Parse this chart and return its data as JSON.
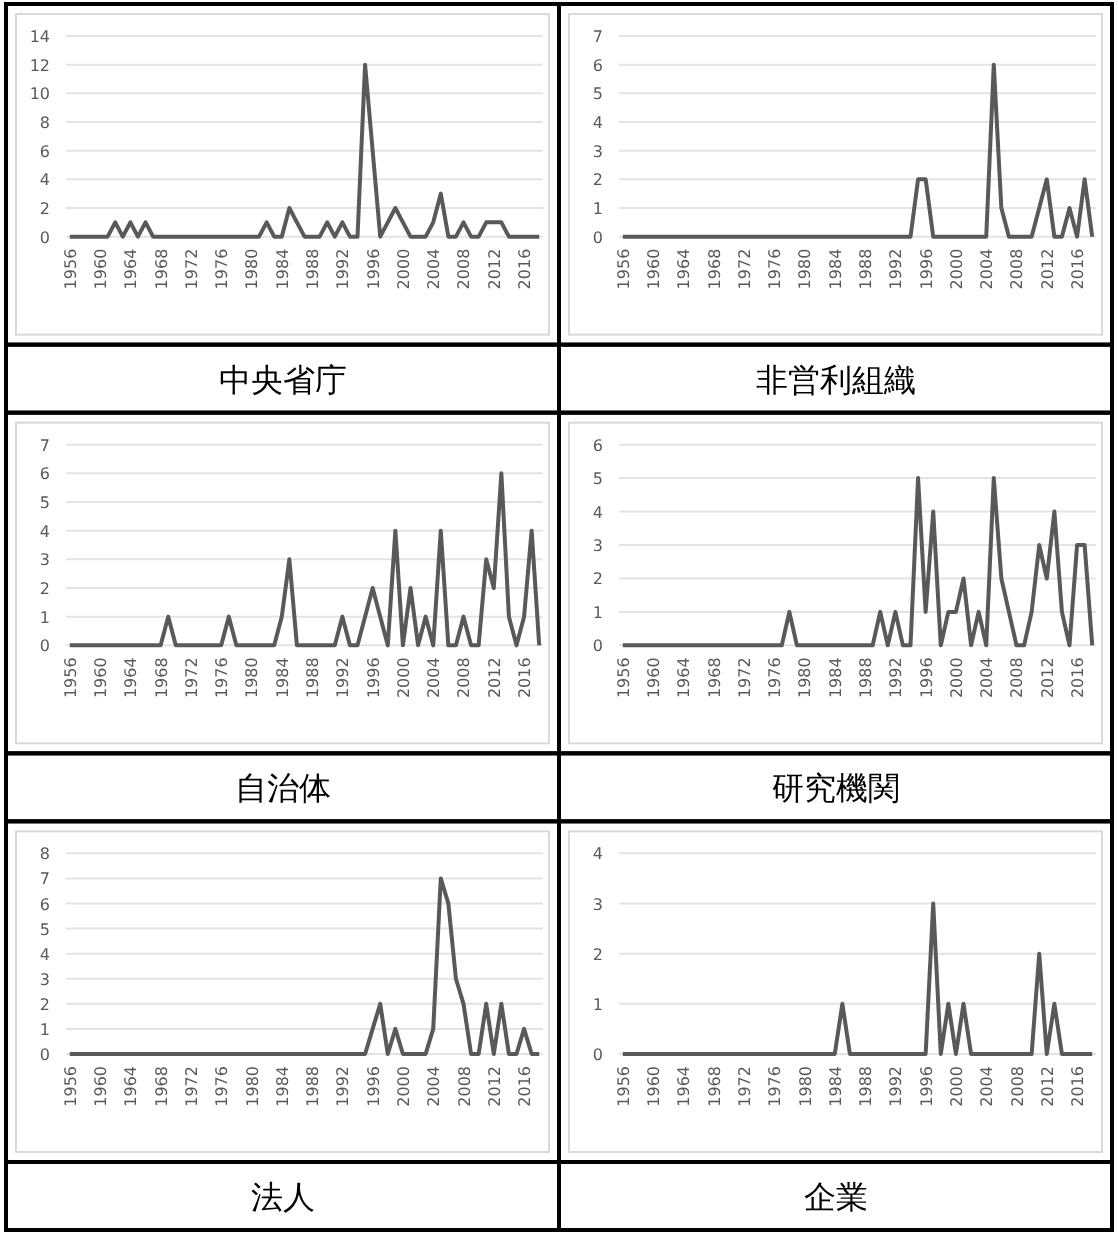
{
  "chart_data": [
    {
      "type": "line",
      "title": "中央省庁",
      "color": "#595959",
      "grid": "y",
      "ylim": [
        0,
        14
      ],
      "yticks": [
        0,
        2,
        4,
        6,
        8,
        10,
        12,
        14
      ],
      "categories": [
        "1956",
        null,
        null,
        null,
        "1960",
        null,
        null,
        null,
        "1964",
        null,
        null,
        null,
        "1968",
        null,
        null,
        null,
        "1972",
        null,
        null,
        null,
        "1976",
        null,
        null,
        null,
        "1980",
        null,
        null,
        null,
        "1984",
        null,
        null,
        null,
        "1988",
        null,
        null,
        null,
        "1992",
        null,
        null,
        null,
        "1996",
        null,
        null,
        null,
        "2000",
        null,
        null,
        null,
        "2004",
        null,
        null,
        null,
        "2008",
        null,
        null,
        null,
        "2012",
        null,
        null,
        null,
        "2016",
        null,
        null
      ],
      "values": [
        0,
        0,
        0,
        0,
        0,
        0,
        1,
        0,
        1,
        0,
        1,
        0,
        0,
        0,
        0,
        0,
        0,
        0,
        0,
        0,
        0,
        0,
        0,
        0,
        0,
        0,
        1,
        0,
        0,
        2,
        1,
        0,
        0,
        0,
        1,
        0,
        1,
        0,
        0,
        12,
        6,
        0,
        1,
        2,
        1,
        0,
        0,
        0,
        1,
        3,
        0,
        0,
        1,
        0,
        0,
        1,
        1,
        1,
        0,
        0,
        0,
        0,
        0
      ]
    },
    {
      "type": "line",
      "title": "非営利組織",
      "color": "#595959",
      "grid": "y",
      "ylim": [
        0,
        7
      ],
      "yticks": [
        0,
        1,
        2,
        3,
        4,
        5,
        6,
        7
      ],
      "categories": [
        "1956",
        null,
        null,
        null,
        "1960",
        null,
        null,
        null,
        "1964",
        null,
        null,
        null,
        "1968",
        null,
        null,
        null,
        "1972",
        null,
        null,
        null,
        "1976",
        null,
        null,
        null,
        "1980",
        null,
        null,
        null,
        "1984",
        null,
        null,
        null,
        "1988",
        null,
        null,
        null,
        "1992",
        null,
        null,
        null,
        "1996",
        null,
        null,
        null,
        "2000",
        null,
        null,
        null,
        "2004",
        null,
        null,
        null,
        "2008",
        null,
        null,
        null,
        "2012",
        null,
        null,
        null,
        "2016",
        null,
        null
      ],
      "values": [
        0,
        0,
        0,
        0,
        0,
        0,
        0,
        0,
        0,
        0,
        0,
        0,
        0,
        0,
        0,
        0,
        0,
        0,
        0,
        0,
        0,
        0,
        0,
        0,
        0,
        0,
        0,
        0,
        0,
        0,
        0,
        0,
        0,
        0,
        0,
        0,
        0,
        0,
        0,
        2,
        2,
        0,
        0,
        0,
        0,
        0,
        0,
        0,
        0,
        6,
        1,
        0,
        0,
        0,
        0,
        1,
        2,
        0,
        0,
        1,
        0,
        2,
        0
      ]
    },
    {
      "type": "line",
      "title": "自治体",
      "color": "#595959",
      "grid": "y",
      "ylim": [
        0,
        7
      ],
      "yticks": [
        0,
        1,
        2,
        3,
        4,
        5,
        6,
        7
      ],
      "categories": [
        "1956",
        null,
        null,
        null,
        "1960",
        null,
        null,
        null,
        "1964",
        null,
        null,
        null,
        "1968",
        null,
        null,
        null,
        "1972",
        null,
        null,
        null,
        "1976",
        null,
        null,
        null,
        "1980",
        null,
        null,
        null,
        "1984",
        null,
        null,
        null,
        "1988",
        null,
        null,
        null,
        "1992",
        null,
        null,
        null,
        "1996",
        null,
        null,
        null,
        "2000",
        null,
        null,
        null,
        "2004",
        null,
        null,
        null,
        "2008",
        null,
        null,
        null,
        "2012",
        null,
        null,
        null,
        "2016",
        null,
        null
      ],
      "values": [
        0,
        0,
        0,
        0,
        0,
        0,
        0,
        0,
        0,
        0,
        0,
        0,
        0,
        1,
        0,
        0,
        0,
        0,
        0,
        0,
        0,
        1,
        0,
        0,
        0,
        0,
        0,
        0,
        1,
        3,
        0,
        0,
        0,
        0,
        0,
        0,
        1,
        0,
        0,
        1,
        2,
        1,
        0,
        4,
        0,
        2,
        0,
        1,
        0,
        4,
        0,
        0,
        1,
        0,
        0,
        3,
        2,
        6,
        1,
        0,
        1,
        4,
        0
      ]
    },
    {
      "type": "line",
      "title": "研究機関",
      "color": "#595959",
      "grid": "y",
      "ylim": [
        0,
        6
      ],
      "yticks": [
        0,
        1,
        2,
        3,
        4,
        5,
        6
      ],
      "categories": [
        "1956",
        null,
        null,
        null,
        "1960",
        null,
        null,
        null,
        "1964",
        null,
        null,
        null,
        "1968",
        null,
        null,
        null,
        "1972",
        null,
        null,
        null,
        "1976",
        null,
        null,
        null,
        "1980",
        null,
        null,
        null,
        "1984",
        null,
        null,
        null,
        "1988",
        null,
        null,
        null,
        "1992",
        null,
        null,
        null,
        "1996",
        null,
        null,
        null,
        "2000",
        null,
        null,
        null,
        "2004",
        null,
        null,
        null,
        "2008",
        null,
        null,
        null,
        "2012",
        null,
        null,
        null,
        "2016",
        null,
        null
      ],
      "values": [
        0,
        0,
        0,
        0,
        0,
        0,
        0,
        0,
        0,
        0,
        0,
        0,
        0,
        0,
        0,
        0,
        0,
        0,
        0,
        0,
        0,
        0,
        1,
        0,
        0,
        0,
        0,
        0,
        0,
        0,
        0,
        0,
        0,
        0,
        1,
        0,
        1,
        0,
        0,
        5,
        1,
        4,
        0,
        1,
        1,
        2,
        0,
        1,
        0,
        5,
        2,
        1,
        0,
        0,
        1,
        3,
        2,
        4,
        1,
        0,
        3,
        3,
        0
      ]
    },
    {
      "type": "line",
      "title": "法人",
      "color": "#595959",
      "grid": "y",
      "ylim": [
        0,
        8
      ],
      "yticks": [
        0,
        1,
        2,
        3,
        4,
        5,
        6,
        7,
        8
      ],
      "categories": [
        "1956",
        null,
        null,
        null,
        "1960",
        null,
        null,
        null,
        "1964",
        null,
        null,
        null,
        "1968",
        null,
        null,
        null,
        "1972",
        null,
        null,
        null,
        "1976",
        null,
        null,
        null,
        "1980",
        null,
        null,
        null,
        "1984",
        null,
        null,
        null,
        "1988",
        null,
        null,
        null,
        "1992",
        null,
        null,
        null,
        "1996",
        null,
        null,
        null,
        "2000",
        null,
        null,
        null,
        "2004",
        null,
        null,
        null,
        "2008",
        null,
        null,
        null,
        "2012",
        null,
        null,
        null,
        "2016",
        null,
        null
      ],
      "values": [
        0,
        0,
        0,
        0,
        0,
        0,
        0,
        0,
        0,
        0,
        0,
        0,
        0,
        0,
        0,
        0,
        0,
        0,
        0,
        0,
        0,
        0,
        0,
        0,
        0,
        0,
        0,
        0,
        0,
        0,
        0,
        0,
        0,
        0,
        0,
        0,
        0,
        0,
        0,
        0,
        1,
        2,
        0,
        1,
        0,
        0,
        0,
        0,
        1,
        7,
        6,
        3,
        2,
        0,
        0,
        2,
        0,
        2,
        0,
        0,
        1,
        0,
        0
      ]
    },
    {
      "type": "line",
      "title": "企業",
      "color": "#595959",
      "grid": "y",
      "ylim": [
        0,
        4
      ],
      "yticks": [
        0,
        1,
        2,
        3,
        4
      ],
      "categories": [
        "1956",
        null,
        null,
        null,
        "1960",
        null,
        null,
        null,
        "1964",
        null,
        null,
        null,
        "1968",
        null,
        null,
        null,
        "1972",
        null,
        null,
        null,
        "1976",
        null,
        null,
        null,
        "1980",
        null,
        null,
        null,
        "1984",
        null,
        null,
        null,
        "1988",
        null,
        null,
        null,
        "1992",
        null,
        null,
        null,
        "1996",
        null,
        null,
        null,
        "2000",
        null,
        null,
        null,
        "2004",
        null,
        null,
        null,
        "2008",
        null,
        null,
        null,
        "2012",
        null,
        null,
        null,
        "2016",
        null,
        null
      ],
      "values": [
        0,
        0,
        0,
        0,
        0,
        0,
        0,
        0,
        0,
        0,
        0,
        0,
        0,
        0,
        0,
        0,
        0,
        0,
        0,
        0,
        0,
        0,
        0,
        0,
        0,
        0,
        0,
        0,
        0,
        1,
        0,
        0,
        0,
        0,
        0,
        0,
        0,
        0,
        0,
        0,
        0,
        3,
        0,
        1,
        0,
        1,
        0,
        0,
        0,
        0,
        0,
        0,
        0,
        0,
        0,
        2,
        0,
        1,
        0,
        0,
        0,
        0,
        0
      ]
    }
  ]
}
